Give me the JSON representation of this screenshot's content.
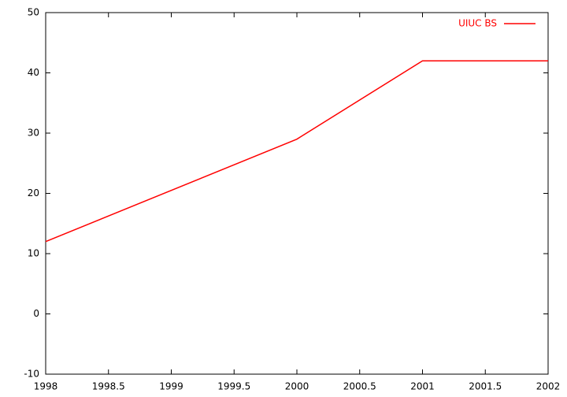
{
  "chart_data": {
    "type": "line",
    "x": [
      1998,
      2000,
      2001,
      2002
    ],
    "series": [
      {
        "name": "UIUC BS",
        "color": "#ff0000",
        "values": [
          12,
          29,
          42,
          42
        ]
      }
    ],
    "xlim": [
      1998,
      2002
    ],
    "xticks": [
      1998,
      1998.5,
      1999,
      1999.5,
      2000,
      2000.5,
      2001,
      2001.5,
      2002
    ],
    "ylim": [
      -10,
      50
    ],
    "yticks": [
      -10,
      0,
      10,
      20,
      30,
      40,
      50
    ],
    "grid": false,
    "legend": "top-right"
  }
}
